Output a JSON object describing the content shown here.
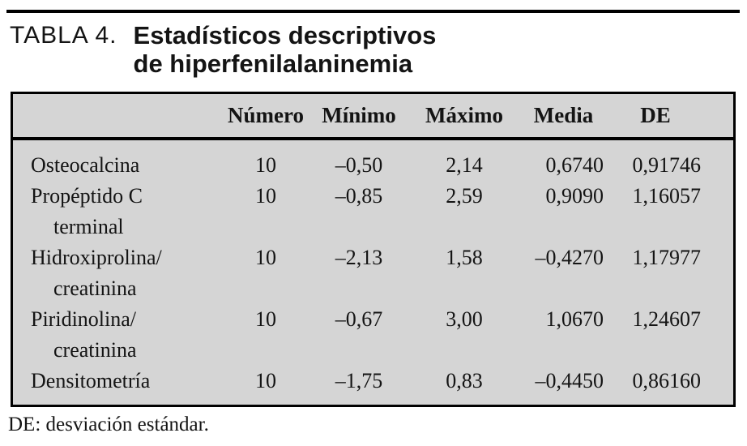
{
  "caption": {
    "label": "TABLA 4.",
    "title_line1": "Estadísticos descriptivos",
    "title_line2": "de hiperfenilalaninemia"
  },
  "table": {
    "columns": [
      "",
      "Número",
      "Mínimo",
      "Máximo",
      "Media",
      "DE"
    ],
    "rows": [
      {
        "label1": "Osteocalcina",
        "label2": "",
        "numero": "10",
        "minimo": "–0,50",
        "maximo": "2,14",
        "media": "0,6740",
        "de": "0,91746"
      },
      {
        "label1": "Propéptido C",
        "label2": "terminal",
        "numero": "10",
        "minimo": "–0,85",
        "maximo": "2,59",
        "media": "0,9090",
        "de": "1,16057"
      },
      {
        "label1": "Hidroxiprolina/",
        "label2": "creatinina",
        "numero": "10",
        "minimo": "–2,13",
        "maximo": "1,58",
        "media": "–0,4270",
        "de": "1,17977"
      },
      {
        "label1": "Piridinolina/",
        "label2": "creatinina",
        "numero": "10",
        "minimo": "–0,67",
        "maximo": "3,00",
        "media": "1,0670",
        "de": "1,24607"
      },
      {
        "label1": "Densitometría",
        "label2": "",
        "numero": "10",
        "minimo": "–1,75",
        "maximo": "0,83",
        "media": "–0,4450",
        "de": "0,86160"
      }
    ]
  },
  "footnote": "DE: desviación estándar.",
  "colors": {
    "table_background": "#d5d5d5",
    "border": "#000000",
    "text": "#141414"
  }
}
